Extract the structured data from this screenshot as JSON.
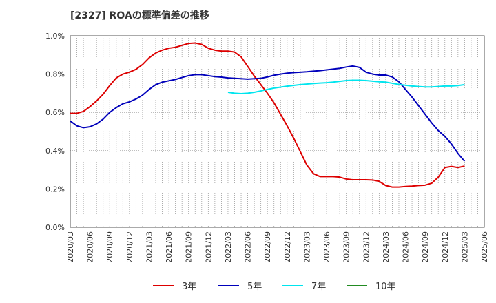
{
  "chart_data": {
    "type": "line",
    "title": "[2327]  ROAの標準偏差の推移",
    "xlabel": "",
    "ylabel": "",
    "ylim": [
      0.0,
      1.0
    ],
    "yticks": [
      "0.0%",
      "0.2%",
      "0.4%",
      "0.6%",
      "0.8%",
      "1.0%"
    ],
    "xticks": [
      "2020/03",
      "2020/06",
      "2020/09",
      "2020/12",
      "2021/03",
      "2021/06",
      "2021/09",
      "2021/12",
      "2022/03",
      "2022/06",
      "2022/09",
      "2022/12",
      "2023/03",
      "2023/06",
      "2023/09",
      "2023/12",
      "2024/03",
      "2024/06",
      "2024/09",
      "2024/12",
      "2025/03",
      "2025/06"
    ],
    "grid": true,
    "legend_position": "bottom",
    "series": [
      {
        "name": "3年",
        "color": "#dd0000",
        "points": [
          [
            "2020/03",
            0.595
          ],
          [
            "2020/04",
            0.595
          ],
          [
            "2020/05",
            0.605
          ],
          [
            "2020/06",
            0.63
          ],
          [
            "2020/07",
            0.66
          ],
          [
            "2020/08",
            0.695
          ],
          [
            "2020/09",
            0.74
          ],
          [
            "2020/10",
            0.78
          ],
          [
            "2020/11",
            0.8
          ],
          [
            "2020/12",
            0.81
          ],
          [
            "2021/01",
            0.825
          ],
          [
            "2021/02",
            0.85
          ],
          [
            "2021/03",
            0.885
          ],
          [
            "2021/04",
            0.91
          ],
          [
            "2021/05",
            0.925
          ],
          [
            "2021/06",
            0.935
          ],
          [
            "2021/07",
            0.94
          ],
          [
            "2021/08",
            0.95
          ],
          [
            "2021/09",
            0.96
          ],
          [
            "2021/10",
            0.962
          ],
          [
            "2021/11",
            0.955
          ],
          [
            "2021/12",
            0.935
          ],
          [
            "2022/01",
            0.925
          ],
          [
            "2022/02",
            0.92
          ],
          [
            "2022/03",
            0.92
          ],
          [
            "2022/04",
            0.915
          ],
          [
            "2022/05",
            0.89
          ],
          [
            "2022/06",
            0.84
          ],
          [
            "2022/07",
            0.79
          ],
          [
            "2022/08",
            0.745
          ],
          [
            "2022/09",
            0.7
          ],
          [
            "2022/10",
            0.65
          ],
          [
            "2022/11",
            0.59
          ],
          [
            "2022/12",
            0.53
          ],
          [
            "2023/01",
            0.465
          ],
          [
            "2023/02",
            0.395
          ],
          [
            "2023/03",
            0.325
          ],
          [
            "2023/04",
            0.28
          ],
          [
            "2023/05",
            0.265
          ],
          [
            "2023/06",
            0.265
          ],
          [
            "2023/07",
            0.265
          ],
          [
            "2023/08",
            0.262
          ],
          [
            "2023/09",
            0.252
          ],
          [
            "2023/10",
            0.248
          ],
          [
            "2023/11",
            0.248
          ],
          [
            "2023/12",
            0.248
          ],
          [
            "2024/01",
            0.247
          ],
          [
            "2024/02",
            0.24
          ],
          [
            "2024/03",
            0.218
          ],
          [
            "2024/04",
            0.21
          ],
          [
            "2024/05",
            0.21
          ],
          [
            "2024/06",
            0.213
          ],
          [
            "2024/07",
            0.215
          ],
          [
            "2024/08",
            0.218
          ],
          [
            "2024/09",
            0.22
          ],
          [
            "2024/10",
            0.23
          ],
          [
            "2024/11",
            0.262
          ],
          [
            "2024/12",
            0.312
          ],
          [
            "2025/01",
            0.318
          ],
          [
            "2025/02",
            0.312
          ],
          [
            "2025/03",
            0.32
          ]
        ]
      },
      {
        "name": "5年",
        "color": "#0000bb",
        "points": [
          [
            "2020/03",
            0.555
          ],
          [
            "2020/04",
            0.53
          ],
          [
            "2020/05",
            0.52
          ],
          [
            "2020/06",
            0.525
          ],
          [
            "2020/07",
            0.54
          ],
          [
            "2020/08",
            0.565
          ],
          [
            "2020/09",
            0.6
          ],
          [
            "2020/10",
            0.625
          ],
          [
            "2020/11",
            0.645
          ],
          [
            "2020/12",
            0.655
          ],
          [
            "2021/01",
            0.67
          ],
          [
            "2021/02",
            0.69
          ],
          [
            "2021/03",
            0.72
          ],
          [
            "2021/04",
            0.745
          ],
          [
            "2021/05",
            0.758
          ],
          [
            "2021/06",
            0.765
          ],
          [
            "2021/07",
            0.772
          ],
          [
            "2021/08",
            0.782
          ],
          [
            "2021/09",
            0.792
          ],
          [
            "2021/10",
            0.797
          ],
          [
            "2021/11",
            0.797
          ],
          [
            "2021/12",
            0.792
          ],
          [
            "2022/01",
            0.787
          ],
          [
            "2022/02",
            0.784
          ],
          [
            "2022/03",
            0.78
          ],
          [
            "2022/04",
            0.778
          ],
          [
            "2022/05",
            0.776
          ],
          [
            "2022/06",
            0.774
          ],
          [
            "2022/07",
            0.776
          ],
          [
            "2022/08",
            0.778
          ],
          [
            "2022/09",
            0.785
          ],
          [
            "2022/10",
            0.794
          ],
          [
            "2022/11",
            0.8
          ],
          [
            "2022/12",
            0.805
          ],
          [
            "2023/01",
            0.808
          ],
          [
            "2023/02",
            0.81
          ],
          [
            "2023/03",
            0.812
          ],
          [
            "2023/04",
            0.815
          ],
          [
            "2023/05",
            0.818
          ],
          [
            "2023/06",
            0.822
          ],
          [
            "2023/07",
            0.826
          ],
          [
            "2023/08",
            0.83
          ],
          [
            "2023/09",
            0.837
          ],
          [
            "2023/10",
            0.842
          ],
          [
            "2023/11",
            0.835
          ],
          [
            "2023/12",
            0.81
          ],
          [
            "2024/01",
            0.8
          ],
          [
            "2024/02",
            0.795
          ],
          [
            "2024/03",
            0.795
          ],
          [
            "2024/04",
            0.785
          ],
          [
            "2024/05",
            0.76
          ],
          [
            "2024/06",
            0.72
          ],
          [
            "2024/07",
            0.68
          ],
          [
            "2024/08",
            0.635
          ],
          [
            "2024/09",
            0.59
          ],
          [
            "2024/10",
            0.545
          ],
          [
            "2024/11",
            0.505
          ],
          [
            "2024/12",
            0.475
          ],
          [
            "2025/01",
            0.435
          ],
          [
            "2025/02",
            0.385
          ],
          [
            "2025/03",
            0.345
          ]
        ]
      },
      {
        "name": "7年",
        "color": "#00e5ee",
        "points": [
          [
            "2022/03",
            0.705
          ],
          [
            "2022/04",
            0.7
          ],
          [
            "2022/05",
            0.698
          ],
          [
            "2022/06",
            0.7
          ],
          [
            "2022/07",
            0.705
          ],
          [
            "2022/08",
            0.712
          ],
          [
            "2022/09",
            0.72
          ],
          [
            "2022/10",
            0.727
          ],
          [
            "2022/11",
            0.732
          ],
          [
            "2022/12",
            0.737
          ],
          [
            "2023/01",
            0.741
          ],
          [
            "2023/02",
            0.745
          ],
          [
            "2023/03",
            0.748
          ],
          [
            "2023/04",
            0.751
          ],
          [
            "2023/05",
            0.753
          ],
          [
            "2023/06",
            0.755
          ],
          [
            "2023/07",
            0.758
          ],
          [
            "2023/08",
            0.762
          ],
          [
            "2023/09",
            0.766
          ],
          [
            "2023/10",
            0.768
          ],
          [
            "2023/11",
            0.768
          ],
          [
            "2023/12",
            0.766
          ],
          [
            "2024/01",
            0.763
          ],
          [
            "2024/02",
            0.76
          ],
          [
            "2024/03",
            0.758
          ],
          [
            "2024/04",
            0.752
          ],
          [
            "2024/05",
            0.746
          ],
          [
            "2024/06",
            0.742
          ],
          [
            "2024/07",
            0.738
          ],
          [
            "2024/08",
            0.735
          ],
          [
            "2024/09",
            0.733
          ],
          [
            "2024/10",
            0.733
          ],
          [
            "2024/11",
            0.735
          ],
          [
            "2024/12",
            0.738
          ],
          [
            "2025/01",
            0.738
          ],
          [
            "2025/02",
            0.74
          ],
          [
            "2025/03",
            0.745
          ]
        ]
      },
      {
        "name": "10年",
        "color": "#228b22",
        "points": []
      }
    ]
  }
}
